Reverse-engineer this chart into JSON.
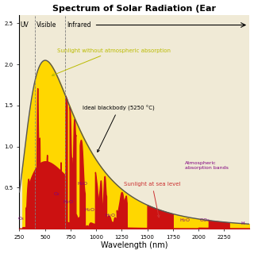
{
  "title": "Spectrum of Solar Radiation (Ear",
  "xlabel": "Wavelength (nm)",
  "xlim": [
    250,
    2500
  ],
  "ylim": [
    0,
    2.6
  ],
  "yticks": [
    0.5,
    1.0,
    1.5,
    2.0,
    2.5
  ],
  "xticks": [
    250,
    500,
    750,
    1000,
    1250,
    1500,
    1750,
    2000,
    2250
  ],
  "bg_color": "#f0ead6",
  "yellow_color": "#FFD700",
  "red_color": "#CC1111",
  "uv_label": "UV",
  "visible_label": "Visible",
  "infrared_label": "Infrared",
  "uv_end": 400,
  "visible_end": 700,
  "annotation_sunlight_no_atm": "Sunlight without atmospheric absorption",
  "annotation_blackbody": "Ideal blackbody (5250 °C)",
  "annotation_sea_level": "Sunlight at sea level",
  "annotation_atm_bands": "Atmospheric\nabsorption bands",
  "sunlight_color": "#bbbb00",
  "sea_level_color": "#cc3333"
}
